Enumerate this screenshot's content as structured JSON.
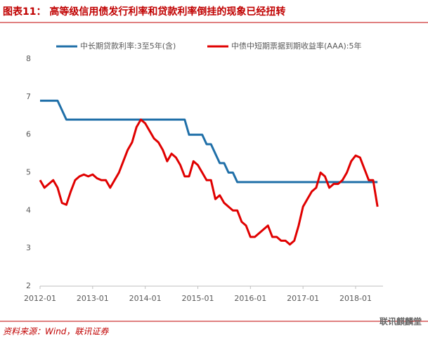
{
  "chart_data": {
    "type": "line",
    "title": "图表11： 高等级信用债发行利率和贷款利率倒挂的现象已经扭转",
    "x": [
      "2012-01",
      "2012-02",
      "2012-03",
      "2012-04",
      "2012-05",
      "2012-06",
      "2012-07",
      "2012-08",
      "2012-09",
      "2012-10",
      "2012-11",
      "2012-12",
      "2013-01",
      "2013-02",
      "2013-03",
      "2013-04",
      "2013-05",
      "2013-06",
      "2013-07",
      "2013-08",
      "2013-09",
      "2013-10",
      "2013-11",
      "2013-12",
      "2014-01",
      "2014-02",
      "2014-03",
      "2014-04",
      "2014-05",
      "2014-06",
      "2014-07",
      "2014-08",
      "2014-09",
      "2014-10",
      "2014-11",
      "2014-12",
      "2015-01",
      "2015-02",
      "2015-03",
      "2015-04",
      "2015-05",
      "2015-06",
      "2015-07",
      "2015-08",
      "2015-09",
      "2015-10",
      "2015-11",
      "2015-12",
      "2016-01",
      "2016-02",
      "2016-03",
      "2016-04",
      "2016-05",
      "2016-06",
      "2016-07",
      "2016-08",
      "2016-09",
      "2016-10",
      "2016-11",
      "2016-12",
      "2017-01",
      "2017-02",
      "2017-03",
      "2017-04",
      "2017-05",
      "2017-06",
      "2017-07",
      "2017-08",
      "2017-09",
      "2017-10",
      "2017-11",
      "2017-12",
      "2018-01",
      "2018-02",
      "2018-03",
      "2018-04",
      "2018-05",
      "2018-06"
    ],
    "series": [
      {
        "name": "中长期贷款利率:3至5年(含)",
        "color": "#1f6fa8",
        "values": [
          6.9,
          6.9,
          6.9,
          6.9,
          6.9,
          6.65,
          6.4,
          6.4,
          6.4,
          6.4,
          6.4,
          6.4,
          6.4,
          6.4,
          6.4,
          6.4,
          6.4,
          6.4,
          6.4,
          6.4,
          6.4,
          6.4,
          6.4,
          6.4,
          6.4,
          6.4,
          6.4,
          6.4,
          6.4,
          6.4,
          6.4,
          6.4,
          6.4,
          6.4,
          6.0,
          6.0,
          6.0,
          6.0,
          5.75,
          5.75,
          5.5,
          5.25,
          5.25,
          5.0,
          5.0,
          4.75,
          4.75,
          4.75,
          4.75,
          4.75,
          4.75,
          4.75,
          4.75,
          4.75,
          4.75,
          4.75,
          4.75,
          4.75,
          4.75,
          4.75,
          4.75,
          4.75,
          4.75,
          4.75,
          4.75,
          4.75,
          4.75,
          4.75,
          4.75,
          4.75,
          4.75,
          4.75,
          4.75,
          4.75,
          4.75,
          4.75,
          4.75,
          4.75
        ]
      },
      {
        "name": "中债中短期票据到期收益率(AAA):5年",
        "color": "#e00000",
        "values": [
          4.8,
          4.6,
          4.7,
          4.8,
          4.6,
          4.2,
          4.15,
          4.5,
          4.8,
          4.9,
          4.95,
          4.9,
          4.95,
          4.85,
          4.8,
          4.8,
          4.6,
          4.8,
          5.0,
          5.3,
          5.6,
          5.8,
          6.2,
          6.4,
          6.3,
          6.1,
          5.9,
          5.8,
          5.6,
          5.3,
          5.5,
          5.4,
          5.2,
          4.9,
          4.9,
          5.3,
          5.2,
          5.0,
          4.8,
          4.8,
          4.3,
          4.4,
          4.2,
          4.1,
          4.0,
          4.0,
          3.7,
          3.6,
          3.3,
          3.3,
          3.4,
          3.5,
          3.6,
          3.3,
          3.3,
          3.2,
          3.2,
          3.1,
          3.2,
          3.6,
          4.1,
          4.3,
          4.5,
          4.6,
          5.0,
          4.9,
          4.6,
          4.7,
          4.7,
          4.8,
          5.0,
          5.3,
          5.45,
          5.4,
          5.1,
          4.8,
          4.8,
          4.1
        ]
      }
    ],
    "xticks": [
      "2012-01",
      "2013-01",
      "2014-01",
      "2015-01",
      "2016-01",
      "2017-01",
      "2018-01"
    ],
    "ylim": [
      2,
      8
    ],
    "yticks": [
      2,
      3,
      4,
      5,
      6,
      7,
      8
    ],
    "grid": false,
    "legend": "top"
  },
  "footer": {
    "source": "资料来源：Wind，联讯证券",
    "watermark": "联讯麒麟堂"
  }
}
